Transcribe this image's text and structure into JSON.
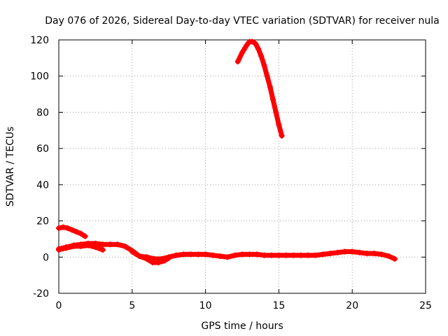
{
  "chart_data": {
    "type": "scatter",
    "title": "Day 076 of 2026, Sidereal Day-to-day VTEC variation (SDTVAR) for receiver nula",
    "xlabel": "GPS time / hours",
    "ylabel": "SDTVAR / TECUs",
    "xlim": [
      0,
      25
    ],
    "ylim": [
      -20,
      120
    ],
    "xticks": [
      "0",
      "5",
      "10",
      "15",
      "20",
      "25"
    ],
    "yticks": [
      "-20",
      "0",
      "20",
      "40",
      "60",
      "80",
      "100",
      "120"
    ],
    "grid": true,
    "marker": "plus",
    "color": "#ff0000",
    "series": [
      {
        "name": "arc-high",
        "x": [
          12.2,
          12.5,
          12.8,
          13.0,
          13.2,
          13.4,
          13.6,
          13.8,
          14.0,
          14.2,
          14.4,
          14.6,
          14.8,
          15.0,
          15.2
        ],
        "y": [
          108,
          113,
          117,
          119,
          119,
          118,
          115,
          111,
          106,
          100,
          94,
          87,
          80,
          73,
          67
        ]
      },
      {
        "name": "arc-early",
        "x": [
          0.0,
          0.3,
          0.6,
          0.9,
          1.2,
          1.5,
          1.8
        ],
        "y": [
          16,
          16.5,
          16,
          15,
          14,
          13,
          11.5
        ]
      },
      {
        "name": "arc-main",
        "x": [
          0.0,
          0.5,
          1.0,
          1.5,
          2.0,
          2.5,
          3.0,
          3.5,
          4.0,
          4.5,
          5.0,
          5.5,
          6.0,
          6.5,
          7.0,
          7.5,
          8.0,
          8.5,
          9.0,
          9.5,
          10.0,
          10.5,
          11.0,
          11.5,
          12.0,
          12.5,
          13.0,
          13.5,
          14.0,
          14.5,
          15.0,
          15.5,
          16.0,
          16.5,
          17.0,
          17.5,
          18.0,
          18.5,
          19.0,
          19.5,
          20.0,
          20.5,
          21.0,
          21.5,
          22.0,
          22.5,
          22.9
        ],
        "y": [
          4.5,
          5.5,
          6.5,
          7,
          7.5,
          7.5,
          7,
          7,
          7,
          6,
          3.5,
          0.5,
          0,
          -1,
          -1,
          0,
          1,
          1.5,
          1.5,
          1.5,
          1.5,
          1,
          0.5,
          0,
          1,
          1.5,
          1.5,
          1.5,
          1,
          1,
          1,
          1,
          1,
          1,
          1,
          1,
          1.5,
          2,
          2.5,
          3,
          3,
          2.5,
          2,
          2,
          1.5,
          0.5,
          -1
        ]
      },
      {
        "name": "arc-dip",
        "x": [
          5.0,
          5.5,
          6.0,
          6.4,
          6.8,
          7.2,
          7.5
        ],
        "y": [
          3,
          0.5,
          -1,
          -3,
          -3,
          -2,
          -0.5
        ]
      },
      {
        "name": "arc-band",
        "x": [
          0.0,
          0.5,
          1.0,
          1.5,
          2.0,
          2.5,
          3.0
        ],
        "y": [
          4,
          5,
          6,
          6,
          6.5,
          5.5,
          4
        ]
      }
    ]
  }
}
